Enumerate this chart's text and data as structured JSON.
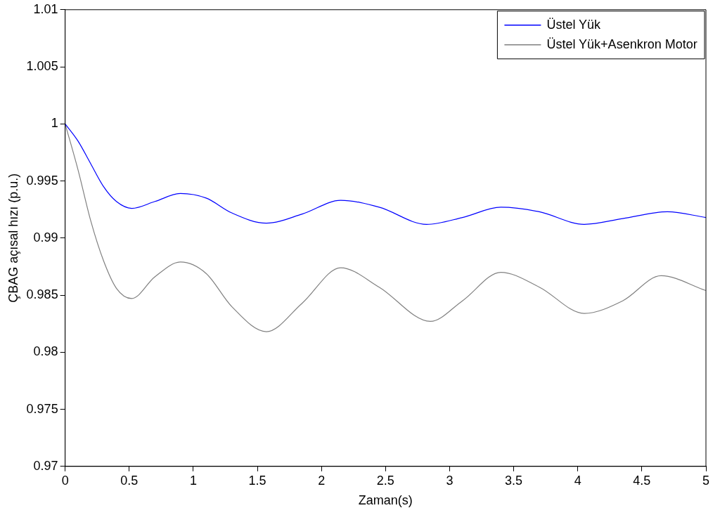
{
  "chart_data": {
    "type": "line",
    "xlabel": "Zaman(s)",
    "ylabel": "ÇBAG açısal hızı (p.u.)",
    "xlim": [
      0,
      5
    ],
    "xticks": [
      0,
      0.5,
      1,
      1.5,
      2,
      2.5,
      3,
      3.5,
      4,
      4.5,
      5
    ],
    "ylim": [
      0.97,
      1.01
    ],
    "yticks": [
      0.97,
      0.975,
      0.98,
      0.985,
      0.99,
      0.995,
      1,
      1.005,
      1.01
    ],
    "grid": false,
    "legend": "top right",
    "marker": "none",
    "line_style": "solid",
    "series": [
      {
        "name": "Üstel Yük",
        "color": "#0000ff",
        "x": [
          0,
          0.1,
          0.2,
          0.3,
          0.4,
          0.52,
          0.7,
          0.9,
          1.1,
          1.3,
          1.57,
          1.85,
          2.15,
          2.45,
          2.82,
          3.1,
          3.4,
          3.7,
          4.05,
          4.35,
          4.7,
          5
        ],
        "values": [
          1.0,
          0.9985,
          0.9965,
          0.9945,
          0.9932,
          0.9926,
          0.9932,
          0.9939,
          0.9935,
          0.9922,
          0.9913,
          0.9921,
          0.9933,
          0.9927,
          0.9912,
          0.9918,
          0.9927,
          0.9923,
          0.9912,
          0.9917,
          0.9923,
          0.9918
        ]
      },
      {
        "name": "Üstel Yük+Asenkron Motor",
        "color": "#808080",
        "x": [
          0,
          0.1,
          0.2,
          0.3,
          0.4,
          0.52,
          0.7,
          0.9,
          1.1,
          1.3,
          1.57,
          1.85,
          2.15,
          2.45,
          2.85,
          3.1,
          3.4,
          3.7,
          4.05,
          4.35,
          4.65,
          5
        ],
        "values": [
          1.0,
          0.996,
          0.9915,
          0.988,
          0.9856,
          0.9847,
          0.9866,
          0.9879,
          0.9869,
          0.984,
          0.9818,
          0.9843,
          0.9874,
          0.9857,
          0.9827,
          0.9845,
          0.987,
          0.9857,
          0.9834,
          0.9845,
          0.9867,
          0.9854
        ]
      }
    ]
  }
}
